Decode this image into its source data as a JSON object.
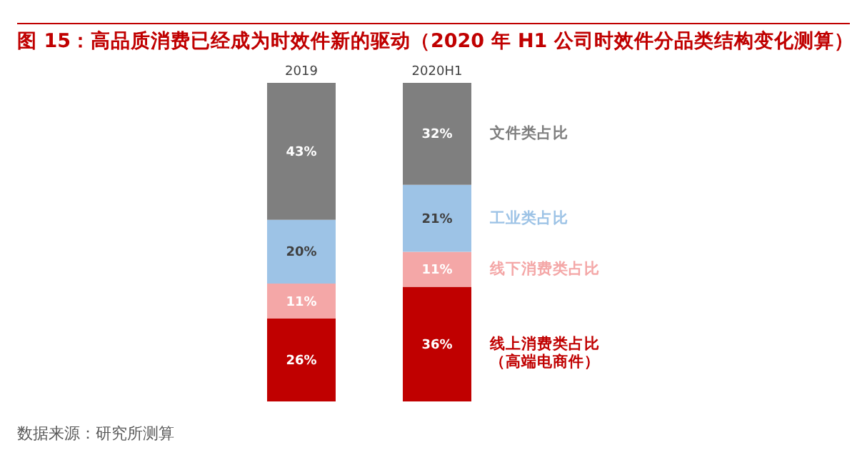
{
  "chart_data": {
    "type": "bar",
    "stacked": true,
    "title": "图 15：高品质消费已经成为时效件新的驱动（2020 年 H1 公司时效件分品类结构变化测算）",
    "annotations": [
      "数据来源：研究所测算"
    ],
    "categories": [
      "2019",
      "2020H1"
    ],
    "series": [
      {
        "name": "线上消费类占比（高端电商件）",
        "color": "#c00000",
        "values": [
          26,
          36
        ],
        "value_labels": [
          "26%",
          "36%"
        ]
      },
      {
        "name": "线下消费类占比",
        "color": "#f4a7a7",
        "values": [
          11,
          11
        ],
        "value_labels": [
          "11%",
          "11%"
        ]
      },
      {
        "name": "工业类占比",
        "color": "#9dc3e6",
        "values": [
          20,
          21
        ],
        "value_labels": [
          "20%",
          "21%"
        ]
      },
      {
        "name": "文件类占比",
        "color": "#7f7f7f",
        "values": [
          43,
          32
        ],
        "value_labels": [
          "43%",
          "32%"
        ]
      }
    ],
    "legend": "right"
  }
}
